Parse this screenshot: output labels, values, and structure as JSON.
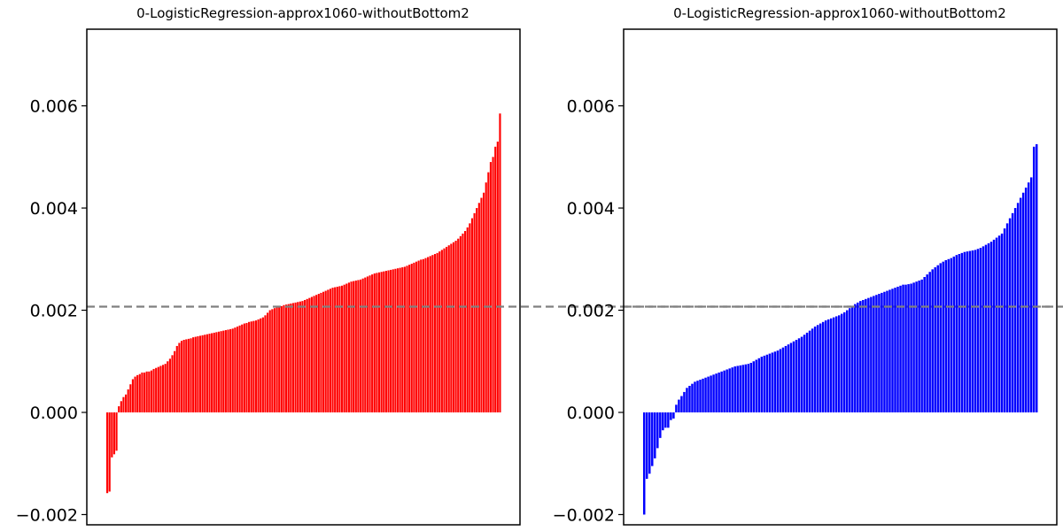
{
  "chart_data": [
    {
      "type": "bar",
      "title": "0-LogisticRegression-approx1060-withoutBottom2",
      "xlabel": "",
      "ylabel": "",
      "ylim": [
        -0.0022,
        0.0075
      ],
      "yticks": [
        -0.002,
        0.0,
        0.002,
        0.004,
        0.006
      ],
      "ytick_labels": [
        "−0.002",
        "0.000",
        "0.002",
        "0.004",
        "0.006"
      ],
      "bar_color": "#ff0000",
      "reference_line": {
        "value": 0.00207,
        "color": "#808080",
        "style": "dashed"
      },
      "x_ticks_shown": false,
      "grid": false,
      "values": [
        -0.00158,
        -0.00155,
        -0.00088,
        -0.00082,
        -0.00075,
        0.00012,
        0.00022,
        0.0003,
        0.00035,
        0.00045,
        0.00055,
        0.00065,
        0.0007,
        0.00073,
        0.00075,
        0.00078,
        0.00078,
        0.0008,
        0.0008,
        0.00082,
        0.00085,
        0.00087,
        0.00089,
        0.00091,
        0.00093,
        0.00095,
        0.001,
        0.00105,
        0.00112,
        0.0012,
        0.0013,
        0.00136,
        0.0014,
        0.00142,
        0.00143,
        0.00144,
        0.00145,
        0.00147,
        0.00148,
        0.00149,
        0.0015,
        0.00151,
        0.00152,
        0.00153,
        0.00154,
        0.00155,
        0.00156,
        0.00157,
        0.00158,
        0.00159,
        0.0016,
        0.00161,
        0.00162,
        0.00163,
        0.00164,
        0.00166,
        0.00168,
        0.0017,
        0.00172,
        0.00174,
        0.00175,
        0.00177,
        0.00178,
        0.00179,
        0.0018,
        0.00182,
        0.00184,
        0.00186,
        0.0019,
        0.00195,
        0.002,
        0.00202,
        0.00204,
        0.00206,
        0.00207,
        0.00208,
        0.0021,
        0.00211,
        0.00212,
        0.00213,
        0.00214,
        0.00215,
        0.00216,
        0.00217,
        0.00218,
        0.0022,
        0.00222,
        0.00224,
        0.00226,
        0.00228,
        0.0023,
        0.00232,
        0.00234,
        0.00236,
        0.00238,
        0.0024,
        0.00242,
        0.00244,
        0.00245,
        0.00246,
        0.00247,
        0.00248,
        0.0025,
        0.00252,
        0.00254,
        0.00256,
        0.00257,
        0.00258,
        0.00259,
        0.0026,
        0.00262,
        0.00264,
        0.00266,
        0.00268,
        0.0027,
        0.00272,
        0.00273,
        0.00274,
        0.00275,
        0.00276,
        0.00277,
        0.00278,
        0.00279,
        0.0028,
        0.00281,
        0.00282,
        0.00283,
        0.00284,
        0.00285,
        0.00287,
        0.00289,
        0.00291,
        0.00293,
        0.00295,
        0.00297,
        0.00299,
        0.003,
        0.00302,
        0.00304,
        0.00306,
        0.00308,
        0.0031,
        0.00312,
        0.00315,
        0.00318,
        0.00321,
        0.00324,
        0.00327,
        0.0033,
        0.00333,
        0.00336,
        0.0034,
        0.00345,
        0.0035,
        0.00355,
        0.00362,
        0.0037,
        0.0038,
        0.0039,
        0.004,
        0.0041,
        0.0042,
        0.0043,
        0.0045,
        0.0047,
        0.0049,
        0.005,
        0.0052,
        0.0053,
        0.00585
      ]
    },
    {
      "type": "bar",
      "title": "0-LogisticRegression-approx1060-withoutBottom2",
      "xlabel": "",
      "ylabel": "",
      "ylim": [
        -0.0022,
        0.0075
      ],
      "yticks": [
        -0.002,
        0.0,
        0.002,
        0.004,
        0.006
      ],
      "ytick_labels": [
        "−0.002",
        "0.000",
        "0.002",
        "0.004",
        "0.006"
      ],
      "bar_color": "#0000ff",
      "reference_line": {
        "value": 0.00207,
        "color": "#808080",
        "style": "dashed"
      },
      "x_ticks_shown": false,
      "grid": false,
      "values": [
        -0.002,
        -0.0013,
        -0.0012,
        -0.00105,
        -0.0009,
        -0.0007,
        -0.0005,
        -0.00035,
        -0.0003,
        -0.0003,
        -0.00015,
        -0.00012,
        0.00015,
        0.00025,
        0.00032,
        0.0004,
        0.00048,
        0.00052,
        0.00056,
        0.0006,
        0.00062,
        0.00064,
        0.00066,
        0.00068,
        0.0007,
        0.00072,
        0.00074,
        0.00076,
        0.00078,
        0.0008,
        0.00082,
        0.00084,
        0.00086,
        0.00088,
        0.0009,
        0.00091,
        0.00092,
        0.00093,
        0.00094,
        0.00095,
        0.00097,
        0.001,
        0.00103,
        0.00106,
        0.00109,
        0.00111,
        0.00113,
        0.00115,
        0.00117,
        0.00119,
        0.00121,
        0.00124,
        0.00127,
        0.0013,
        0.00133,
        0.00136,
        0.00139,
        0.00142,
        0.00145,
        0.00148,
        0.00152,
        0.00156,
        0.0016,
        0.00164,
        0.00168,
        0.00171,
        0.00174,
        0.00177,
        0.0018,
        0.00182,
        0.00184,
        0.00186,
        0.00188,
        0.0019,
        0.00193,
        0.00196,
        0.002,
        0.00204,
        0.00208,
        0.00212,
        0.00215,
        0.00218,
        0.0022,
        0.00222,
        0.00224,
        0.00226,
        0.00228,
        0.0023,
        0.00232,
        0.00234,
        0.00236,
        0.00238,
        0.0024,
        0.00242,
        0.00244,
        0.00246,
        0.00248,
        0.0025,
        0.0025,
        0.00251,
        0.00252,
        0.00254,
        0.00256,
        0.00258,
        0.0026,
        0.00265,
        0.0027,
        0.00275,
        0.0028,
        0.00284,
        0.00288,
        0.00292,
        0.00295,
        0.00298,
        0.003,
        0.00302,
        0.00305,
        0.00308,
        0.0031,
        0.00312,
        0.00314,
        0.00315,
        0.00316,
        0.00317,
        0.00318,
        0.0032,
        0.00322,
        0.00325,
        0.00328,
        0.00331,
        0.00334,
        0.00338,
        0.00342,
        0.00346,
        0.0035,
        0.0036,
        0.0037,
        0.0038,
        0.0039,
        0.004,
        0.0041,
        0.0042,
        0.0043,
        0.0044,
        0.0045,
        0.0046,
        0.0052,
        0.00525
      ]
    }
  ]
}
